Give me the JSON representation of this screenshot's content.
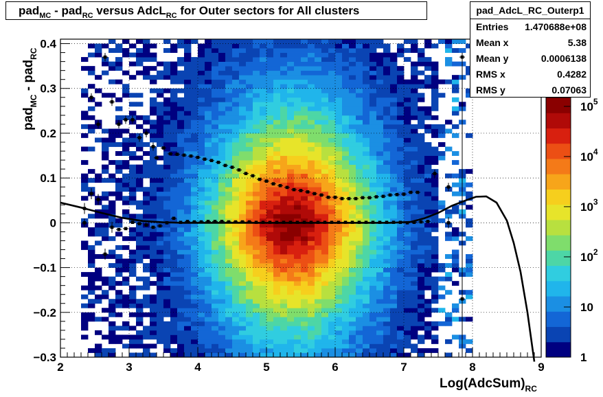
{
  "title": {
    "parts": [
      {
        "text": "pad",
        "sub": "MC"
      },
      {
        "text": " - pad",
        "sub": "RC"
      },
      {
        "text": " versus AdcL",
        "sub": "RC"
      },
      {
        "text": " for Outer sectors for All clusters",
        "sub": ""
      }
    ]
  },
  "stats": {
    "name": "pad_AdcL_RC_Outerp1",
    "rows": [
      {
        "label": "Entries",
        "value": "1.470688e+08"
      },
      {
        "label": "Mean x",
        "value": "5.38"
      },
      {
        "label": "Mean y",
        "value": "0.0006138"
      },
      {
        "label": "RMS x",
        "value": "0.4282"
      },
      {
        "label": "RMS y",
        "value": "0.07063"
      }
    ]
  },
  "colors": {
    "palette": [
      "#000080",
      "#0a44b3",
      "#1366d6",
      "#1b8fe3",
      "#20b5eb",
      "#30cde0",
      "#4dd6a6",
      "#7fdd6c",
      "#b8e03f",
      "#e7e42a",
      "#f6cf1d",
      "#f7a51a",
      "#f47a18",
      "#ec4f14",
      "#d8200f",
      "#b00a08",
      "#8a0000"
    ],
    "profile": "#000000",
    "fit": "#000000"
  },
  "chart_data": {
    "type": "heatmap",
    "title": "pad_MC - pad_RC versus AdcL_RC for Outer sectors for All clusters",
    "xlabel": "Log(AdcSum)_RC",
    "ylabel": "pad_MC - pad_RC",
    "xlim": [
      2,
      9
    ],
    "ylim": [
      -0.3,
      0.41
    ],
    "zscale": "log",
    "zlim": [
      1,
      150000
    ],
    "grid": true,
    "x_ticks": [
      2,
      3,
      4,
      5,
      6,
      7,
      8,
      9
    ],
    "y_ticks": [
      -0.3,
      -0.2,
      -0.1,
      0,
      0.1,
      0.2,
      0.3,
      0.4
    ],
    "x_tick_labels": [
      "2",
      "3",
      "4",
      "5",
      "6",
      "7",
      "8",
      "9"
    ],
    "y_tick_labels": [
      "−0.3",
      "−0.2",
      "−0.1",
      "0",
      "0.1",
      "0.2",
      "0.3",
      "0.4"
    ],
    "z_ticks": [
      {
        "value": 1,
        "base": "1",
        "exp": ""
      },
      {
        "value": 10,
        "base": "10",
        "exp": ""
      },
      {
        "value": 100,
        "base": "10",
        "exp": "2"
      },
      {
        "value": 1000,
        "base": "10",
        "exp": "3"
      },
      {
        "value": 10000,
        "base": "10",
        "exp": "4"
      },
      {
        "value": 100000,
        "base": "10",
        "exp": "5"
      }
    ],
    "density_peak": {
      "x": 5.38,
      "y": 0.0,
      "sigma_x": 0.62,
      "sigma_y": 0.085,
      "max": 150000
    },
    "x_extent": [
      2.28,
      7.85
    ],
    "profile_rms": {
      "x": [
        3.4,
        3.5,
        3.6,
        3.7,
        3.8,
        3.9,
        4.0,
        4.1,
        4.2,
        4.3,
        4.4,
        4.5,
        4.6,
        4.7,
        4.8,
        4.9,
        5.0,
        5.1,
        5.2,
        5.3,
        5.4,
        5.5,
        5.6,
        5.7,
        5.8,
        5.9,
        6.0,
        6.1,
        6.2,
        6.3,
        6.4,
        6.5,
        6.6,
        6.7,
        6.8,
        6.9,
        7.0,
        7.1,
        7.2
      ],
      "y": [
        0.145,
        0.167,
        0.154,
        0.153,
        0.151,
        0.149,
        0.146,
        0.142,
        0.139,
        0.135,
        0.128,
        0.124,
        0.118,
        0.11,
        0.105,
        0.097,
        0.093,
        0.087,
        0.083,
        0.079,
        0.074,
        0.072,
        0.069,
        0.065,
        0.062,
        0.057,
        0.057,
        0.054,
        0.054,
        0.054,
        0.056,
        0.056,
        0.058,
        0.059,
        0.062,
        0.063,
        0.064,
        0.068,
        0.068
      ]
    },
    "profile_rms_scatter": {
      "x": [
        2.35,
        2.45,
        2.55,
        2.65,
        2.75,
        2.85,
        2.95,
        3.05,
        3.15,
        3.25,
        3.35,
        7.45,
        7.65,
        7.85
      ],
      "y": [
        0.0,
        0.28,
        0.22,
        0.37,
        0.27,
        0.22,
        0.23,
        0.23,
        0.19,
        0.2,
        0.17,
        0.11,
        0.08,
        0.37
      ]
    },
    "profile_mean": {
      "x": [
        2.35,
        2.45,
        2.55,
        2.65,
        2.75,
        2.85,
        2.95,
        3.05,
        3.15,
        3.25,
        3.35,
        3.45,
        3.55,
        3.65,
        3.75,
        3.85,
        3.95,
        4.05,
        4.15,
        4.25,
        4.35,
        4.45,
        4.55,
        4.65,
        4.75,
        4.85,
        4.95,
        5.05,
        5.15,
        5.25,
        5.35,
        5.45,
        5.55,
        5.65,
        5.75,
        5.85,
        5.95,
        6.05,
        6.15,
        6.25,
        6.35,
        6.45,
        6.55,
        6.65,
        6.75,
        6.85,
        6.95,
        7.05,
        7.15,
        7.25,
        7.35,
        7.65,
        7.85
      ],
      "y": [
        0.032,
        0.065,
        0.052,
        -0.07,
        -0.01,
        -0.015,
        -0.013,
        0.001,
        -0.002,
        -0.005,
        -0.01,
        -0.007,
        0.0,
        0.01,
        0.001,
        0.003,
        0.002,
        0.002,
        0.003,
        0.003,
        0.003,
        0.002,
        0.002,
        0.002,
        0.002,
        0.001,
        0.001,
        0.001,
        0.001,
        0.001,
        0.001,
        0.001,
        0.001,
        0.001,
        0.001,
        0.001,
        0.001,
        0.001,
        0.001,
        0.001,
        0.001,
        0.001,
        0.001,
        0.001,
        0.001,
        0.001,
        0.001,
        0.0,
        0.001,
        0.002,
        0.003,
        0.0,
        -0.17
      ]
    },
    "fit_curve": {
      "x": [
        2.0,
        2.3,
        2.6,
        2.9,
        3.2,
        3.5,
        3.8,
        4.1,
        4.4,
        4.7,
        5.0,
        5.3,
        5.6,
        5.9,
        6.2,
        6.5,
        6.8,
        7.1,
        7.3,
        7.5,
        7.7,
        7.9,
        8.05,
        8.2,
        8.35,
        8.5,
        8.6,
        8.7,
        8.8,
        8.9
      ],
      "y": [
        0.045,
        0.034,
        0.022,
        0.011,
        0.004,
        0.001,
        0.0,
        0.0,
        0.0,
        0.0,
        0.0,
        0.0,
        0.0,
        0.0,
        0.0,
        0.0,
        0.0,
        0.002,
        0.01,
        0.022,
        0.038,
        0.05,
        0.058,
        0.059,
        0.045,
        0.005,
        -0.045,
        -0.11,
        -0.2,
        -0.31
      ]
    }
  }
}
